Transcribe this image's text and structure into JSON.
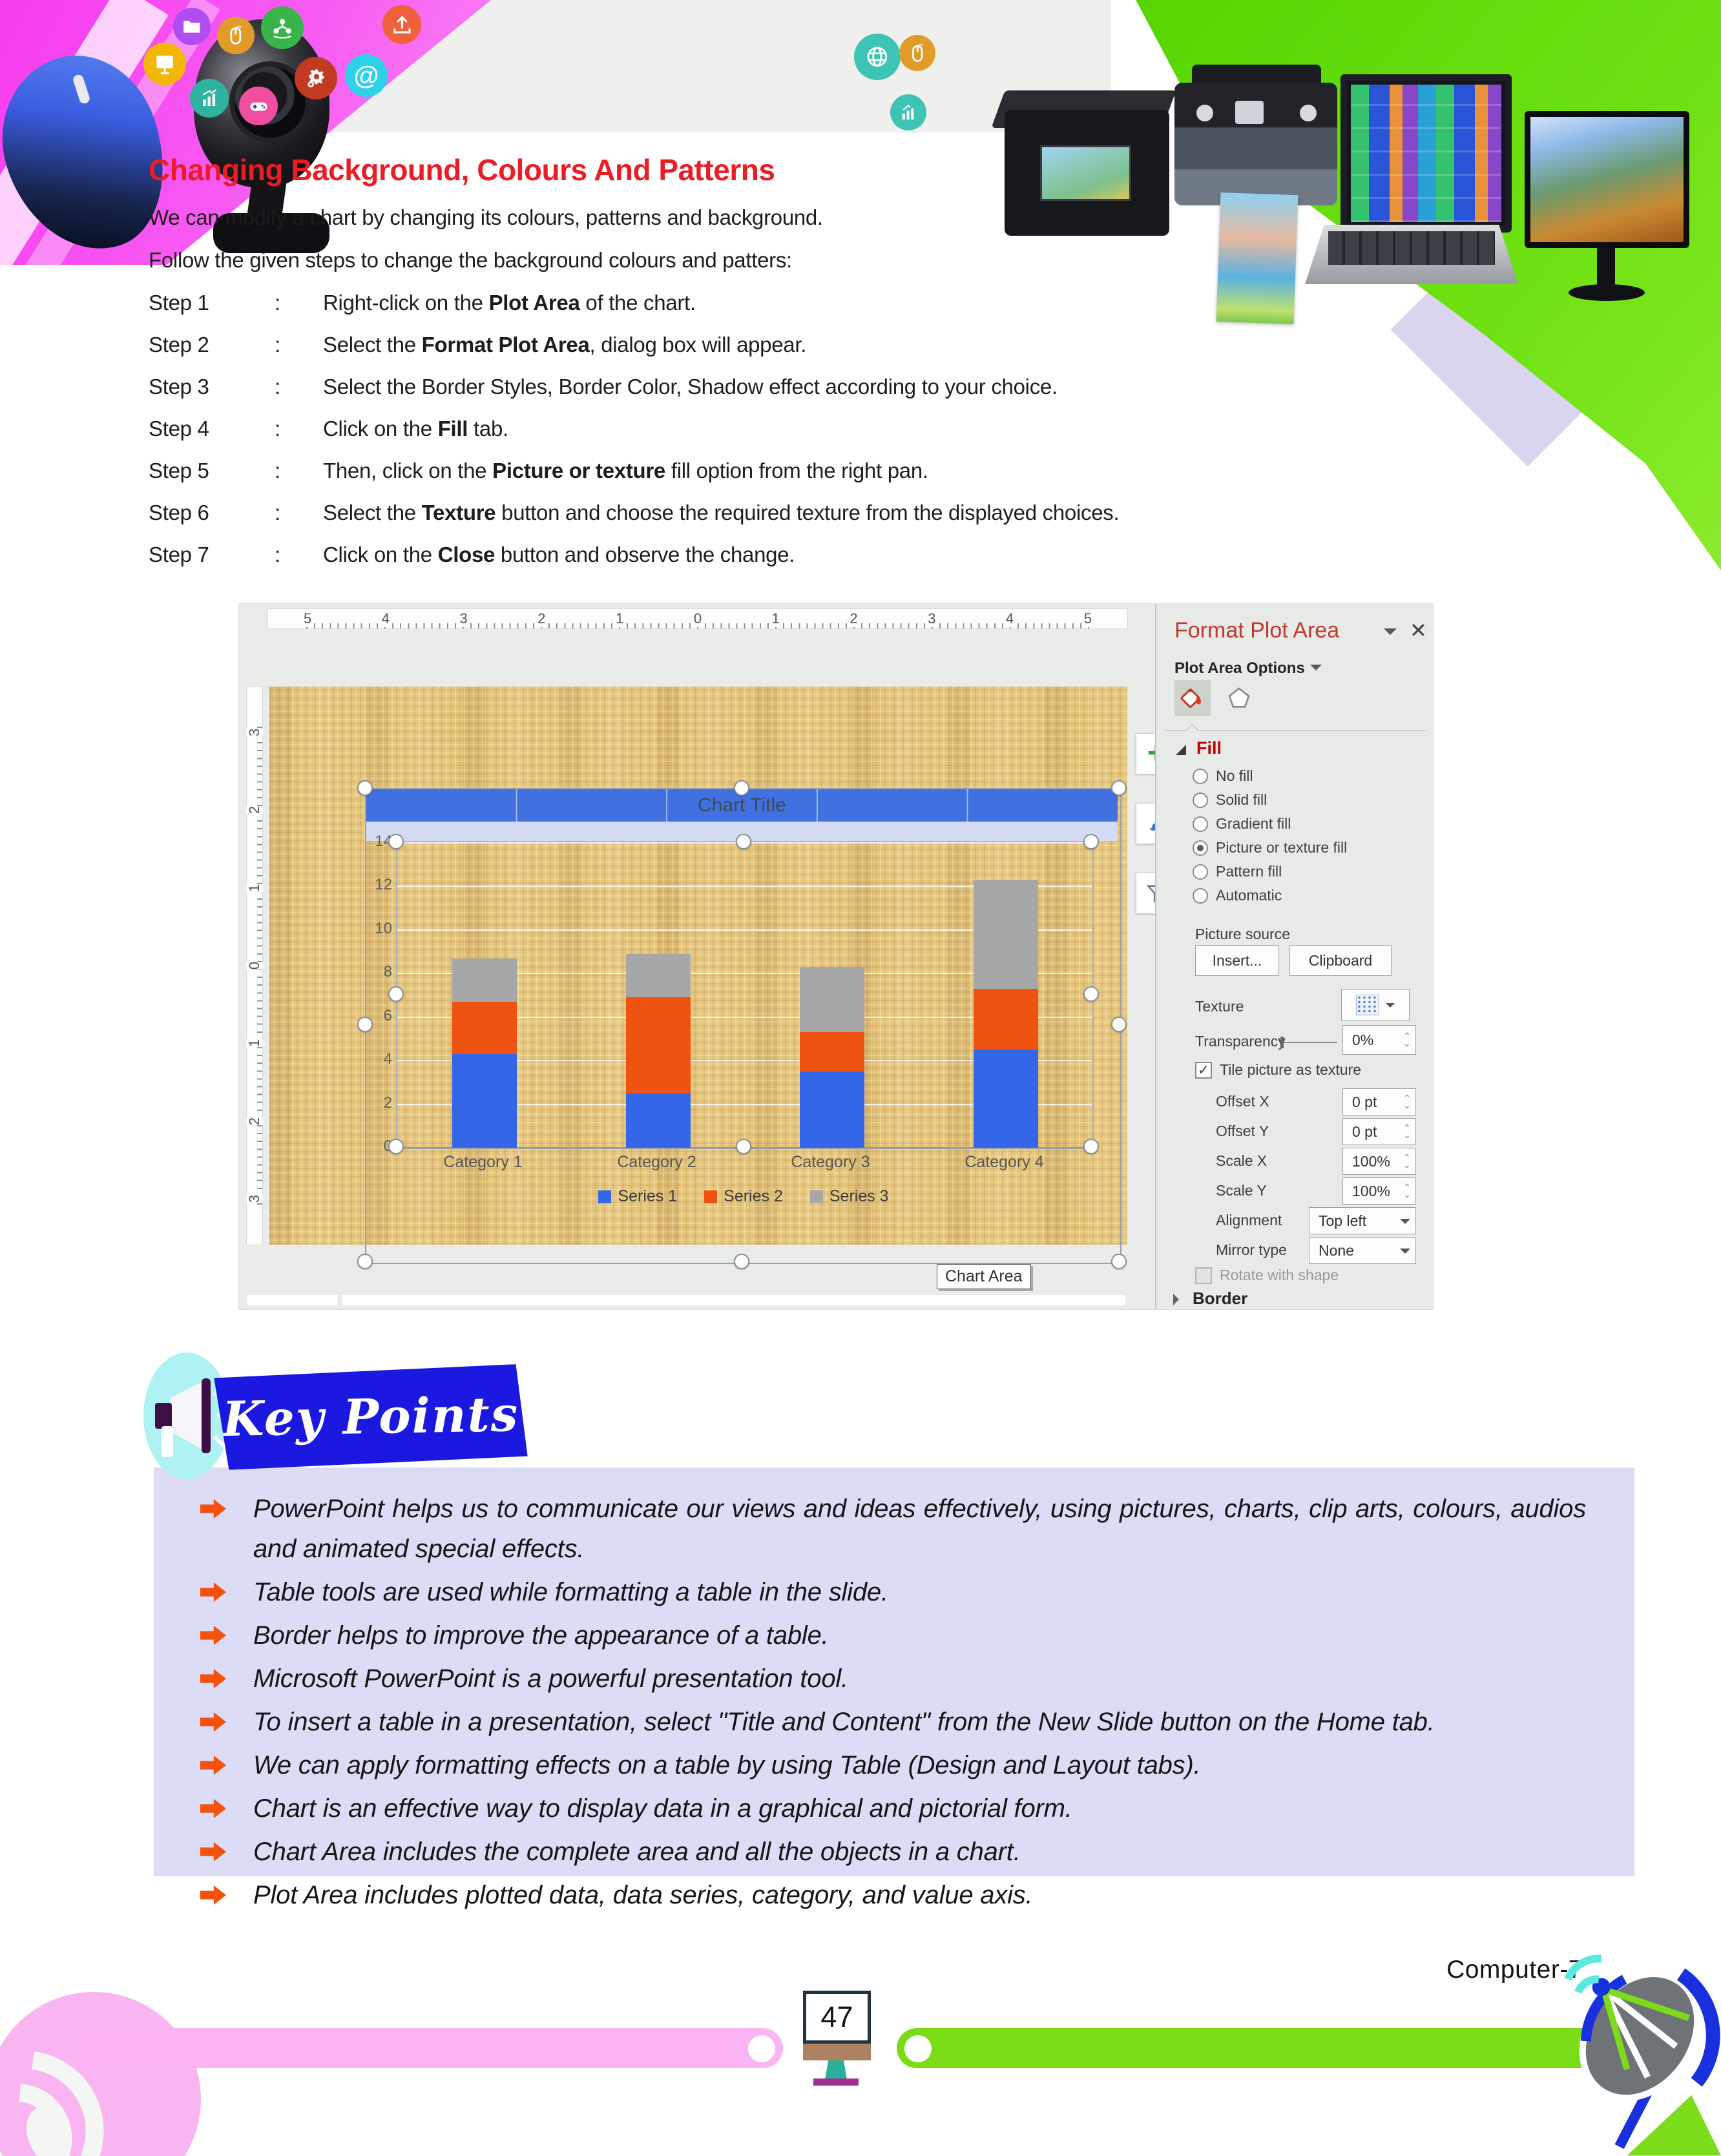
{
  "page": {
    "number": "47",
    "book_label": "Computer-7"
  },
  "header": {
    "title": "Changing Background, Colours And Patterns",
    "icons": [
      {
        "name": "folder-icon",
        "color": "#b04df2"
      },
      {
        "name": "mouse-icon",
        "color": "#e09b28"
      },
      {
        "name": "network-icon",
        "color": "#38b54a"
      },
      {
        "name": "upload-icon",
        "color": "#f0603a"
      },
      {
        "name": "monitor-icon",
        "color": "#f2b705"
      },
      {
        "name": "chart-icon",
        "color": "#2db3a0"
      },
      {
        "name": "gamepad-icon",
        "color": "#f04fa0"
      },
      {
        "name": "gears-icon",
        "color": "#c33a22"
      },
      {
        "name": "at-icon",
        "color": "#2cd2ea"
      },
      {
        "name": "globe-icon",
        "color": "#3ec4b4"
      },
      {
        "name": "mouse-icon-2",
        "color": "#e09b28"
      },
      {
        "name": "chart-icon-2",
        "color": "#3ec4b4"
      }
    ]
  },
  "intro": {
    "line1": "We can modify a chart by changing its colours, patterns and background.",
    "line2": "Follow the given steps to change the background colours and patters:"
  },
  "steps": {
    "colon": ":",
    "items": [
      {
        "label": "Step 1",
        "pre": "Right-click on the ",
        "bold": "Plot Area",
        "post": " of the chart."
      },
      {
        "label": "Step 2",
        "pre": "Select the ",
        "bold": "Format Plot Area",
        "post": ", dialog box will appear."
      },
      {
        "label": "Step 3",
        "pre": "Select the Border Styles, Border Color, Shadow effect according to your choice.",
        "bold": "",
        "post": ""
      },
      {
        "label": "Step 4",
        "pre": "Click on the ",
        "bold": "Fill",
        "post": " tab."
      },
      {
        "label": "Step 5",
        "pre": "Then, click on the ",
        "bold": "Picture or texture",
        "post": " fill option from the right pan."
      },
      {
        "label": "Step 6",
        "pre": "Select the ",
        "bold": "Texture",
        "post": " button and choose the required texture from the displayed choices."
      },
      {
        "label": "Step 7",
        "pre": "Click on the ",
        "bold": "Close",
        "post": " button and observe the change."
      }
    ]
  },
  "screenshot": {
    "ruler_h": [
      "5",
      "4",
      "3",
      "2",
      "1",
      "0",
      "1",
      "2",
      "3",
      "4",
      "5"
    ],
    "ruler_v": [
      "3",
      "2",
      "1",
      "0",
      "1",
      "2",
      "3"
    ],
    "tooltip": "Chart Area",
    "panel": {
      "title": "Format Plot Area",
      "options_label": "Plot Area Options",
      "fill_heading": "Fill",
      "fill_options": [
        {
          "label": "No fill",
          "selected": false
        },
        {
          "label": "Solid fill",
          "selected": false
        },
        {
          "label": "Gradient fill",
          "selected": false
        },
        {
          "label": "Picture or texture fill",
          "selected": true
        },
        {
          "label": "Pattern fill",
          "selected": false
        },
        {
          "label": "Automatic",
          "selected": false
        }
      ],
      "picture_source_label": "Picture source",
      "insert_button": "Insert...",
      "clipboard_button": "Clipboard",
      "texture_label": "Texture",
      "transparency_label": "Transparency",
      "transparency_value": "0%",
      "tile_checkbox_label": "Tile picture as texture",
      "tile_checked": true,
      "fields": [
        {
          "label": "Offset X",
          "value": "0 pt",
          "type": "spinner"
        },
        {
          "label": "Offset Y",
          "value": "0 pt",
          "type": "spinner"
        },
        {
          "label": "Scale X",
          "value": "100%",
          "type": "spinner"
        },
        {
          "label": "Scale Y",
          "value": "100%",
          "type": "spinner"
        },
        {
          "label": "Alignment",
          "value": "Top left",
          "type": "dropdown"
        },
        {
          "label": "Mirror type",
          "value": "None",
          "type": "dropdown"
        }
      ],
      "rotate_checkbox_label": "Rotate with shape",
      "border_heading": "Border"
    }
  },
  "chart_data": {
    "type": "bar",
    "stacked": true,
    "title": "Chart Title",
    "categories": [
      "Category 1",
      "Category 2",
      "Category 3",
      "Category 4"
    ],
    "series": [
      {
        "name": "Series 1",
        "color": "#3366e8",
        "values": [
          4.3,
          2.5,
          3.5,
          4.5
        ]
      },
      {
        "name": "Series 2",
        "color": "#f05211",
        "values": [
          2.4,
          4.4,
          1.8,
          2.8
        ]
      },
      {
        "name": "Series 3",
        "color": "#a7a7a7",
        "values": [
          2.0,
          2.0,
          3.0,
          5.0
        ]
      }
    ],
    "xlabel": "",
    "ylabel": "",
    "ylim": [
      0,
      14
    ],
    "y_ticks": [
      14,
      12,
      10,
      8,
      6,
      4,
      2,
      0
    ],
    "grid": true,
    "legend_position": "bottom"
  },
  "key_points": {
    "heading": "Key Points",
    "items": [
      "PowerPoint helps us to communicate our views and ideas effectively, using pictures, charts, clip arts, colours, audios and animated special effects.",
      "Table tools are used while formatting a table in the slide.",
      "Border helps to improve the appearance of a table.",
      "Microsoft PowerPoint is a powerful presentation tool.",
      "To insert a table in a presentation, select \"Title and Content\" from the New Slide button on the Home tab.",
      "We can apply formatting effects on a table by using Table (Design and Layout tabs).",
      "Chart is an effective way to display data in a graphical and pictorial form.",
      "Chart Area includes the complete area and all the objects in a chart.",
      "Plot Area includes plotted data, data series, category, and value axis."
    ]
  }
}
